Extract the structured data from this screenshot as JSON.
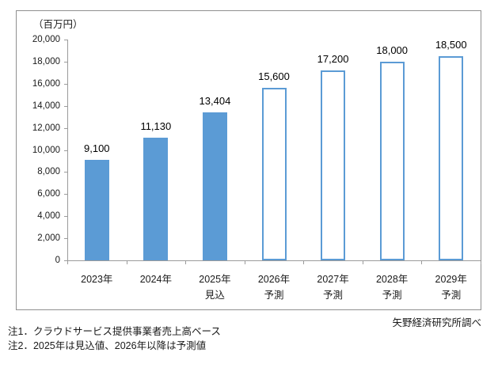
{
  "chart": {
    "unit_label": "（百万円）",
    "source": "矢野経済研究所調べ"
  },
  "notes": {
    "note1": "注1．クラウドサービス提供事業者売上高ベース",
    "note2": "注2．2025年は見込値、2026年以降は予測値"
  },
  "chart_data": {
    "type": "bar",
    "title": "",
    "ylabel": "（百万円）",
    "xlabel": "",
    "categories": [
      "2023年",
      "2024年",
      "2025年",
      "2026年",
      "2027年",
      "2028年",
      "2029年"
    ],
    "sublabels": [
      "",
      "",
      "見込",
      "予測",
      "予測",
      "予測",
      "予測"
    ],
    "series": [
      {
        "name": "クラウドサービス提供事業者売上高",
        "values": [
          9100,
          11130,
          13404,
          15600,
          17200,
          18000,
          18500
        ]
      }
    ],
    "data_labels": [
      "9,100",
      "11,130",
      "13,404",
      "15,600",
      "17,200",
      "18,000",
      "18,500"
    ],
    "bar_styles": [
      "solid",
      "solid",
      "solid",
      "outline",
      "outline",
      "outline",
      "outline"
    ],
    "ylim": [
      0,
      20000
    ],
    "ytick_step": 2000,
    "grid": false,
    "legend_position": "none",
    "colors": {
      "bar_fill": "#5B9BD5",
      "bar_outline": "#5B9BD5",
      "frame_border": "#8f8f8f",
      "axis": "#9b9b9b"
    }
  }
}
